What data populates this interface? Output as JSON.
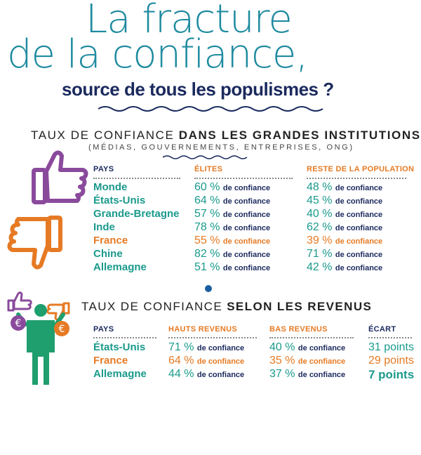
{
  "title_line1": "La fracture",
  "title_line2": "de la confiance,",
  "subtitle": "source de tous les populismes ?",
  "section1": {
    "title_light": "TAUX DE CONFIANCE",
    "title_bold": "DANS LES GRANDES INSTITUTIONS",
    "subtitle": "(MÉDIAS, GOUVERNEMENTS, ENTREPRISES, ONG)",
    "col_pays": "PAYS",
    "col_elites": "ÉLITES",
    "col_reste": "RESTE DE LA POPULATION",
    "suffix": "de confiance",
    "rows": [
      {
        "country": "Monde",
        "elites": "60 %",
        "reste": "48 %",
        "highlight": false
      },
      {
        "country": "États-Unis",
        "elites": "64 %",
        "reste": "45 %",
        "highlight": false
      },
      {
        "country": "Grande-Bretagne",
        "elites": "57 %",
        "reste": "40 %",
        "highlight": false
      },
      {
        "country": "Inde",
        "elites": "78 %",
        "reste": "62 %",
        "highlight": false
      },
      {
        "country": "France",
        "elites": "55 %",
        "reste": "39 %",
        "highlight": true
      },
      {
        "country": "Chine",
        "elites": "82 %",
        "reste": "71 %",
        "highlight": false
      },
      {
        "country": "Allemagne",
        "elites": "51 %",
        "reste": "42 %",
        "highlight": false
      }
    ]
  },
  "section2": {
    "title_light": "TAUX DE CONFIANCE",
    "title_bold": "SELON LES REVENUS",
    "col_pays": "PAYS",
    "col_hauts": "HAUTS REVENUS",
    "col_bas": "BAS REVENUS",
    "col_ecart": "ÉCART",
    "suffix": "de confiance",
    "rows": [
      {
        "country": "États-Unis",
        "hauts": "71 %",
        "bas": "40 %",
        "ecart": "31 points",
        "highlight": false
      },
      {
        "country": "France",
        "hauts": "64 %",
        "bas": "35 %",
        "ecart": "29 points",
        "highlight": true
      },
      {
        "country": "Allemagne",
        "hauts": "44 %",
        "bas": "37 %",
        "ecart": "7 points",
        "highlight": false,
        "bold": true
      }
    ]
  },
  "icons": [
    "thumbs-up-icon",
    "thumbs-down-icon",
    "person-balance-icon"
  ],
  "colors": {
    "title": "#1f8ba0",
    "navy": "#1b2a5e",
    "teal": "#1a9a8c",
    "orange": "#e67a24",
    "purple": "#8a4a9c",
    "green": "#1f9e6e"
  }
}
